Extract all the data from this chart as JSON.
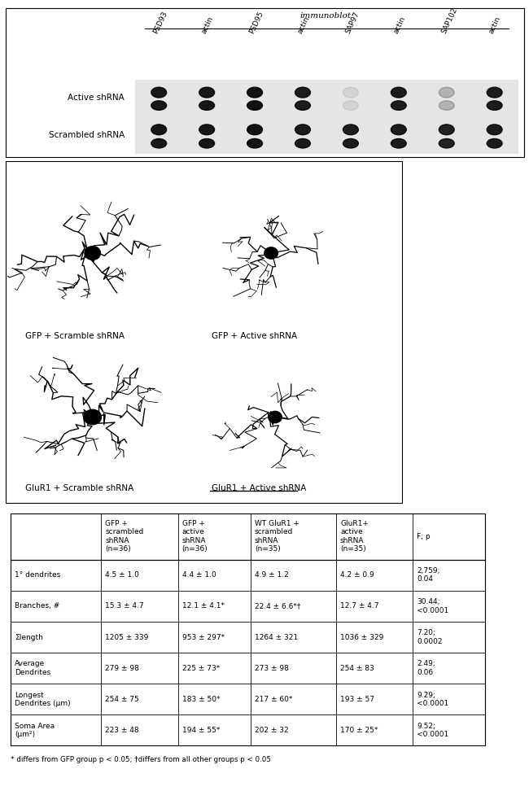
{
  "panel1": {
    "immunoblot_label": "immunoblot:",
    "col_labels": [
      "PSD93",
      "actin",
      "PSD95",
      "actin",
      "SAP97",
      "actin",
      "SAP102",
      "actin"
    ],
    "row_labels": [
      "Active shRNA",
      "Scrambled shRNA"
    ],
    "active_intensity": [
      0.9,
      0.9,
      0.92,
      0.88,
      0.08,
      0.88,
      0.22,
      0.88
    ],
    "scrambled_intensity": [
      0.9,
      0.9,
      0.92,
      0.88,
      0.88,
      0.88,
      0.85,
      0.88
    ]
  },
  "panel2": {
    "labels": [
      "GFP + Scramble shRNA",
      "GFP + Active shRNA",
      "GluR1 + Scramble shRNA",
      "GluR1 + Active shRNA"
    ]
  },
  "table": {
    "col_headers": [
      "",
      "GFP +\nscrambled\nshRNA\n(n=36)",
      "GFP +\nactive\nshRNA\n(n=36)",
      "WT GluR1 +\nscrambled\nshRNA\n(n=35)",
      "GluR1+\nactive\nshRNA\n(n=35)",
      "F; p"
    ],
    "rows": [
      [
        "1° dendrites",
        "4.5 ± 1.0",
        "4.4 ± 1.0",
        "4.9 ± 1.2",
        "4.2 ± 0.9",
        "2,759;\n0.04"
      ],
      [
        "Branches, #",
        "15.3 ± 4.7",
        "12.1 ± 4.1*",
        "22.4 ± 6.6*†",
        "12.7 ± 4.7",
        "30.44;\n<0.0001"
      ],
      [
        "Σlength",
        "1205 ± 339",
        "953 ± 297*",
        "1264 ± 321",
        "1036 ± 329",
        "7.20;\n0.0002"
      ],
      [
        "Average\nDendrites",
        "279 ± 98",
        "225 ± 73*",
        "273 ± 98",
        "254 ± 83",
        "2.49;\n0.06"
      ],
      [
        "Longest\nDendrites (μm)",
        "254 ± 75",
        "183 ± 50*",
        "217 ± 60*",
        "193 ± 57",
        "9.29;\n<0.0001"
      ],
      [
        "Soma Area\n(μm²)",
        "223 ± 48",
        "194 ± 55*",
        "202 ± 32",
        "170 ± 25*",
        "9.52;\n<0.0001"
      ]
    ],
    "footnote": "* differs from GFP group p < 0.05; †differs from all other groups p < 0.05"
  }
}
